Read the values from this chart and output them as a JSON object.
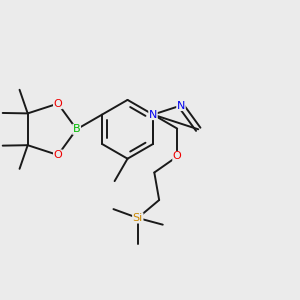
{
  "background_color": "#ebebeb",
  "bond_color": "#1a1a1a",
  "bond_width": 1.4,
  "dbo": 0.009,
  "atom_colors": {
    "B": "#00bb00",
    "O": "#ee0000",
    "N": "#0000ee",
    "Si": "#cc8800",
    "C": "#1a1a1a"
  },
  "afs": 8.0,
  "mfs": 6.5,
  "bl": 0.098
}
